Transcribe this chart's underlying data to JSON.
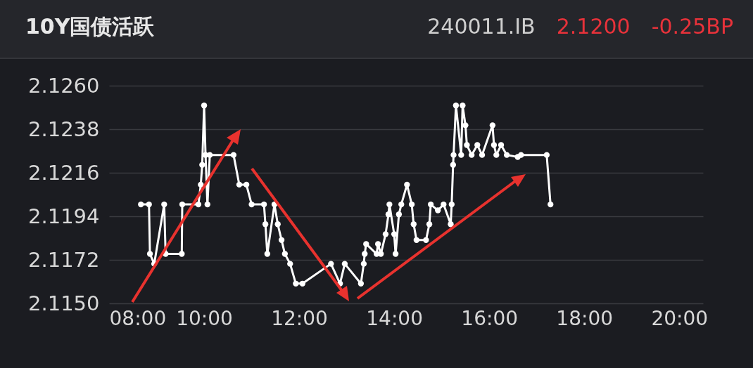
{
  "chart_data": {
    "type": "line",
    "title": "10Y国债活跃",
    "annotations": [
      "240011.IB",
      "2.1200",
      "-0.25BP"
    ],
    "x": [
      8.67,
      8.84,
      8.86,
      8.95,
      9.16,
      9.19,
      9.53,
      9.54,
      9.88,
      9.93,
      9.96,
      10.0,
      10.03,
      10.07,
      10.12,
      10.62,
      10.74,
      10.89,
      11.0,
      11.26,
      11.29,
      11.33,
      11.48,
      11.55,
      11.63,
      11.7,
      11.81,
      11.93,
      12.07,
      12.67,
      12.86,
      12.96,
      13.3,
      13.36,
      13.38,
      13.41,
      13.63,
      13.66,
      13.72,
      13.82,
      13.88,
      13.9,
      14.0,
      14.03,
      14.1,
      14.15,
      14.27,
      14.37,
      14.41,
      14.47,
      14.67,
      14.74,
      14.77,
      14.92,
      15.04,
      15.19,
      15.21,
      15.24,
      15.25,
      15.3,
      15.41,
      15.44,
      15.5,
      15.53,
      15.63,
      15.75,
      15.85,
      16.07,
      16.1,
      16.15,
      16.25,
      16.37,
      16.6,
      16.67,
      17.21,
      17.29
    ],
    "series": [
      {
        "color": "#ffffff",
        "values": [
          2.12,
          2.12,
          2.1175,
          2.117,
          2.12,
          2.1175,
          2.1175,
          2.12,
          2.12,
          2.121,
          2.122,
          2.125,
          2.1225,
          2.12,
          2.1225,
          2.1225,
          2.121,
          2.121,
          2.12,
          2.12,
          2.119,
          2.1175,
          2.12,
          2.119,
          2.1182,
          2.1175,
          2.117,
          2.116,
          2.116,
          2.117,
          2.116,
          2.117,
          2.116,
          2.117,
          2.1175,
          2.118,
          2.1175,
          2.118,
          2.1175,
          2.1185,
          2.1195,
          2.12,
          2.1185,
          2.1175,
          2.1195,
          2.12,
          2.121,
          2.12,
          2.119,
          2.1182,
          2.1182,
          2.119,
          2.12,
          2.1197,
          2.12,
          2.119,
          2.12,
          2.122,
          2.1225,
          2.125,
          2.1225,
          2.125,
          2.124,
          2.123,
          2.1225,
          2.123,
          2.1225,
          2.124,
          2.123,
          2.1225,
          2.123,
          2.1225,
          2.1224,
          2.1225,
          2.1225,
          2.12
        ]
      }
    ],
    "xlim": [
      8,
      20.5
    ],
    "xticks": [
      {
        "value": 8,
        "label": "08:00"
      },
      {
        "value": 10,
        "label": "10:00"
      },
      {
        "value": 12,
        "label": "12:00"
      },
      {
        "value": 14,
        "label": "14:00"
      },
      {
        "value": 16,
        "label": "16:00"
      },
      {
        "value": 18,
        "label": "18:00"
      },
      {
        "value": 20,
        "label": "20:00"
      }
    ],
    "ylim": [
      2.115,
      2.126
    ],
    "yticks": [
      {
        "value": 2.115,
        "label": "2.1150"
      },
      {
        "value": 2.1172,
        "label": "2.1172"
      },
      {
        "value": 2.1194,
        "label": "2.1194"
      },
      {
        "value": 2.1216,
        "label": "2.1216"
      },
      {
        "value": 2.1238,
        "label": "2.1238"
      },
      {
        "value": 2.126,
        "label": "2.1260"
      }
    ],
    "grid": "y",
    "marker": "circle",
    "line_style": "solid"
  }
}
